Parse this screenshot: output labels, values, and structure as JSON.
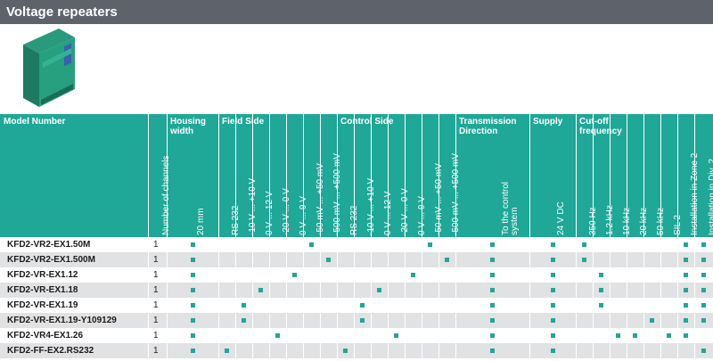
{
  "title": "Voltage repeaters",
  "colors": {
    "accent": "#1fa798",
    "title_bg": "#5e636b",
    "row_alt": "#e1e2e4"
  },
  "groups": [
    {
      "key": "model",
      "label": "Model Number"
    },
    {
      "key": "housing",
      "label": "Housing\nwidth"
    },
    {
      "key": "field",
      "label": "Field Side"
    },
    {
      "key": "control",
      "label": "Control Side"
    },
    {
      "key": "transmission",
      "label": "Transmission\nDirection"
    },
    {
      "key": "supply",
      "label": "Supply"
    },
    {
      "key": "cutoff",
      "label": "Cut-off\nfrequency"
    }
  ],
  "columns": [
    "Number of channels",
    "20 mm",
    "RS 232",
    "-10 V ... +10 V",
    "0 V ... 12 V",
    "-20 V ... 0 V",
    "0 V ... 9 V",
    "-50 mV ... +50 mV",
    "-500 mV ... +500 mV",
    "RS 232",
    "-10 V ... +10 V",
    "0 V ... 12 V",
    "-20 V ... 0 V",
    "0 V ... 9 V",
    "-50 mV ... +50 mV",
    "-500 mV ... +500 mV",
    "To the control\nsystem",
    "24 V DC",
    "350 Hz",
    "1.2 kHz",
    "10 kHz",
    "20 kHz",
    "50 kHz",
    "SIL 2",
    "Installation in Zone 2",
    "Installation in Div. 2"
  ],
  "rows": [
    {
      "model": "KFD2-VR2-EX1.50M",
      "channels": "1",
      "marks": [
        1,
        7,
        14,
        16,
        17,
        18,
        24,
        25
      ]
    },
    {
      "model": "KFD2-VR2-EX1.500M",
      "channels": "1",
      "marks": [
        1,
        8,
        15,
        16,
        17,
        18,
        24,
        25
      ]
    },
    {
      "model": "KFD2-VR-EX1.12",
      "channels": "1",
      "marks": [
        1,
        6,
        13,
        16,
        17,
        19,
        24,
        25
      ]
    },
    {
      "model": "KFD2-VR-EX1.18",
      "channels": "1",
      "marks": [
        1,
        4,
        11,
        16,
        17,
        19,
        24,
        25
      ]
    },
    {
      "model": "KFD2-VR-EX1.19",
      "channels": "1",
      "marks": [
        1,
        3,
        10,
        16,
        17,
        19,
        24,
        25
      ]
    },
    {
      "model": "KFD2-VR-EX1.19-Y109129",
      "channels": "1",
      "marks": [
        1,
        3,
        10,
        16,
        17,
        22,
        24,
        25
      ]
    },
    {
      "model": "KFD2-VR4-EX1.26",
      "channels": "1",
      "marks": [
        1,
        5,
        12,
        16,
        17,
        20,
        21,
        23,
        24
      ]
    },
    {
      "model": "KFD2-FF-EX2.RS232",
      "channels": "1",
      "marks": [
        1,
        2,
        9,
        16,
        17,
        25
      ]
    }
  ]
}
